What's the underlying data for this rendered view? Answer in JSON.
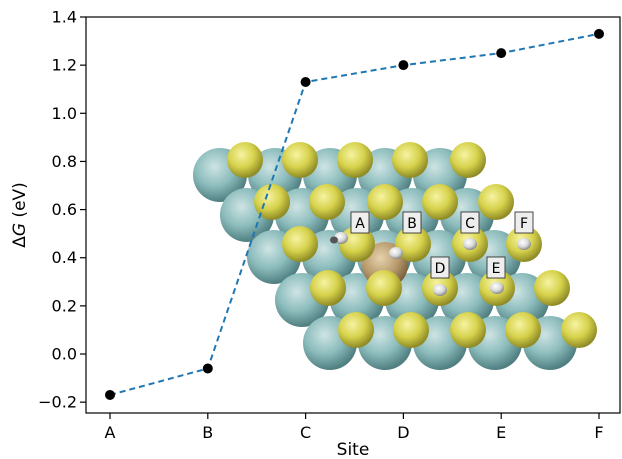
{
  "chart_data": {
    "type": "line",
    "categories": [
      "A",
      "B",
      "C",
      "D",
      "E",
      "F"
    ],
    "values": [
      -0.17,
      -0.06,
      1.13,
      1.2,
      1.25,
      1.33
    ],
    "xlabel": "Site",
    "ylabel": "ΔG (eV)",
    "ylim": [
      -0.245,
      1.4
    ],
    "yticks": [
      -0.2,
      0.0,
      0.2,
      0.4,
      0.6,
      0.8,
      1.0,
      1.2,
      1.4
    ],
    "ytick_labels": [
      "−0.2",
      "0.0",
      "0.2",
      "0.4",
      "0.6",
      "0.8",
      "1.0",
      "1.2",
      "1.4"
    ],
    "grid": false,
    "line_color": "#1f77b4",
    "line_style": "dashed",
    "marker_color": "#000000"
  },
  "inset": {
    "description_free_labels": [
      "A",
      "B",
      "C",
      "F",
      "D",
      "E"
    ],
    "colors": {
      "large_atom": "#7fb3b3",
      "small_atom": "#d8d650",
      "dopant_atom": "#b89a6c",
      "adsorbate": "#e8e8e8"
    }
  }
}
